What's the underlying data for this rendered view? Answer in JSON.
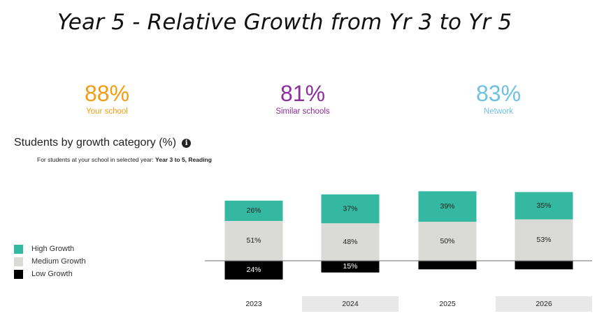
{
  "title": "Year 5 - Relative Growth from Yr 3 to Yr 5",
  "kpis": [
    {
      "value": "88%",
      "label": "Your school",
      "color": "#F39C12"
    },
    {
      "value": "81%",
      "label": "Similar schools",
      "color": "#8E2D9E"
    },
    {
      "value": "83%",
      "label": "Network",
      "color": "#6EC1E4"
    }
  ],
  "chart_heading": "Students by growth category (%)",
  "info_glyph": "i",
  "chart_subtitle_prefix": "For students at your school in selected year:",
  "chart_subtitle_value": "Year 3 to 5, Reading",
  "chart_data": {
    "type": "bar",
    "stacked": true,
    "baseline": "zero line with High and Medium above, Low below",
    "categories": [
      "2023",
      "2024",
      "2025",
      "2026"
    ],
    "highlighted_categories": [
      "2024",
      "2026"
    ],
    "series": [
      {
        "name": "High Growth",
        "color": "#35B8A2",
        "values": [
          26,
          37,
          39,
          35
        ],
        "labels": [
          "26%",
          "37%",
          "39%",
          "35%"
        ],
        "label_color": "#222222"
      },
      {
        "name": "Medium Growth",
        "color": "#DADAD6",
        "values": [
          51,
          48,
          50,
          53
        ],
        "labels": [
          "51%",
          "48%",
          "50%",
          "53%"
        ],
        "label_color": "#222222"
      },
      {
        "name": "Low Growth",
        "color": "#000000",
        "values": [
          24,
          15,
          11,
          11
        ],
        "labels": [
          "24%",
          "15%",
          "",
          ""
        ],
        "label_color": "#ffffff"
      }
    ],
    "legend_position": "left",
    "grid": false
  }
}
